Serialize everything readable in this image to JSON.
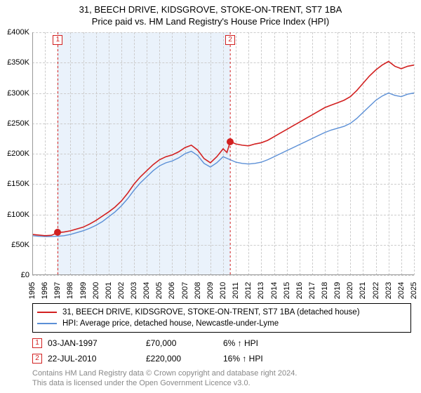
{
  "title": {
    "line1": "31, BEECH DRIVE, KIDSGROVE, STOKE-ON-TRENT, ST7 1BA",
    "line2": "Price paid vs. HM Land Registry's House Price Index (HPI)"
  },
  "chart": {
    "type": "line",
    "background_color": "#ffffff",
    "grid_color": "#cccccc",
    "shade_color": "#eaf2fb",
    "x": {
      "min": 1995,
      "max": 2025,
      "ticks": [
        1995,
        1996,
        1997,
        1998,
        1999,
        2000,
        2001,
        2002,
        2003,
        2004,
        2005,
        2006,
        2007,
        2008,
        2009,
        2010,
        2011,
        2012,
        2013,
        2014,
        2015,
        2016,
        2017,
        2018,
        2019,
        2020,
        2021,
        2022,
        2023,
        2024,
        2025
      ]
    },
    "y": {
      "min": 0,
      "max": 400000,
      "tick_step": 50000,
      "prefix": "£",
      "suffix": "K",
      "divisor": 1000
    },
    "shade": {
      "from_x": 1997.01,
      "to_x": 2010.56
    },
    "series": [
      {
        "name": "property",
        "label": "31, BEECH DRIVE, KIDSGROVE, STOKE-ON-TRENT, ST7 1BA (detached house)",
        "color": "#d22020",
        "width": 1.6,
        "data": [
          [
            1995,
            67000
          ],
          [
            1995.5,
            66000
          ],
          [
            1996,
            65000
          ],
          [
            1996.5,
            65500
          ],
          [
            1997,
            70000
          ],
          [
            1997.5,
            71000
          ],
          [
            1998,
            73000
          ],
          [
            1998.5,
            76000
          ],
          [
            1999,
            79000
          ],
          [
            1999.5,
            84000
          ],
          [
            2000,
            90000
          ],
          [
            2000.5,
            97000
          ],
          [
            2001,
            104000
          ],
          [
            2001.5,
            112000
          ],
          [
            2002,
            122000
          ],
          [
            2002.5,
            135000
          ],
          [
            2003,
            150000
          ],
          [
            2003.5,
            162000
          ],
          [
            2004,
            172000
          ],
          [
            2004.5,
            182000
          ],
          [
            2005,
            190000
          ],
          [
            2005.5,
            195000
          ],
          [
            2006,
            198000
          ],
          [
            2006.5,
            203000
          ],
          [
            2007,
            210000
          ],
          [
            2007.5,
            214000
          ],
          [
            2008,
            206000
          ],
          [
            2008.5,
            192000
          ],
          [
            2009,
            185000
          ],
          [
            2009.5,
            195000
          ],
          [
            2010,
            208000
          ],
          [
            2010.3,
            202000
          ],
          [
            2010.56,
            220000
          ],
          [
            2011,
            216000
          ],
          [
            2011.5,
            214000
          ],
          [
            2012,
            213000
          ],
          [
            2012.5,
            216000
          ],
          [
            2013,
            218000
          ],
          [
            2013.5,
            222000
          ],
          [
            2014,
            228000
          ],
          [
            2014.5,
            234000
          ],
          [
            2015,
            240000
          ],
          [
            2015.5,
            246000
          ],
          [
            2016,
            252000
          ],
          [
            2016.5,
            258000
          ],
          [
            2017,
            264000
          ],
          [
            2017.5,
            270000
          ],
          [
            2018,
            276000
          ],
          [
            2018.5,
            280000
          ],
          [
            2019,
            284000
          ],
          [
            2019.5,
            288000
          ],
          [
            2020,
            294000
          ],
          [
            2020.5,
            304000
          ],
          [
            2021,
            316000
          ],
          [
            2021.5,
            328000
          ],
          [
            2022,
            338000
          ],
          [
            2022.5,
            346000
          ],
          [
            2023,
            352000
          ],
          [
            2023.5,
            344000
          ],
          [
            2024,
            340000
          ],
          [
            2024.5,
            344000
          ],
          [
            2025,
            346000
          ]
        ]
      },
      {
        "name": "hpi",
        "label": "HPI: Average price, detached house, Newcastle-under-Lyme",
        "color": "#5b8fd6",
        "width": 1.4,
        "data": [
          [
            1995,
            65000
          ],
          [
            1995.5,
            64000
          ],
          [
            1996,
            63500
          ],
          [
            1996.5,
            63500
          ],
          [
            1997,
            64000
          ],
          [
            1997.5,
            65000
          ],
          [
            1998,
            67000
          ],
          [
            1998.5,
            70000
          ],
          [
            1999,
            73000
          ],
          [
            1999.5,
            77000
          ],
          [
            2000,
            82000
          ],
          [
            2000.5,
            88000
          ],
          [
            2001,
            96000
          ],
          [
            2001.5,
            104000
          ],
          [
            2002,
            114000
          ],
          [
            2002.5,
            126000
          ],
          [
            2003,
            140000
          ],
          [
            2003.5,
            152000
          ],
          [
            2004,
            162000
          ],
          [
            2004.5,
            172000
          ],
          [
            2005,
            180000
          ],
          [
            2005.5,
            185000
          ],
          [
            2006,
            188000
          ],
          [
            2006.5,
            193000
          ],
          [
            2007,
            200000
          ],
          [
            2007.5,
            204000
          ],
          [
            2008,
            197000
          ],
          [
            2008.5,
            184000
          ],
          [
            2009,
            178000
          ],
          [
            2009.5,
            185000
          ],
          [
            2010,
            195000
          ],
          [
            2010.56,
            190000
          ],
          [
            2011,
            186000
          ],
          [
            2011.5,
            184000
          ],
          [
            2012,
            183000
          ],
          [
            2012.5,
            184000
          ],
          [
            2013,
            186000
          ],
          [
            2013.5,
            190000
          ],
          [
            2014,
            195000
          ],
          [
            2014.5,
            200000
          ],
          [
            2015,
            205000
          ],
          [
            2015.5,
            210000
          ],
          [
            2016,
            215000
          ],
          [
            2016.5,
            220000
          ],
          [
            2017,
            225000
          ],
          [
            2017.5,
            230000
          ],
          [
            2018,
            235000
          ],
          [
            2018.5,
            239000
          ],
          [
            2019,
            242000
          ],
          [
            2019.5,
            245000
          ],
          [
            2020,
            250000
          ],
          [
            2020.5,
            258000
          ],
          [
            2021,
            268000
          ],
          [
            2021.5,
            278000
          ],
          [
            2022,
            288000
          ],
          [
            2022.5,
            295000
          ],
          [
            2023,
            300000
          ],
          [
            2023.5,
            296000
          ],
          [
            2024,
            294000
          ],
          [
            2024.5,
            298000
          ],
          [
            2025,
            300000
          ]
        ]
      }
    ],
    "event_line_color": "#d22020",
    "events": [
      {
        "label": "1",
        "x": 1997.01,
        "dot_y": 70000
      },
      {
        "label": "2",
        "x": 2010.56,
        "dot_y": 220000
      }
    ],
    "dot_color": "#d22020"
  },
  "legend": {
    "border_color": "#000000"
  },
  "sales": [
    {
      "marker": "1",
      "marker_color": "#d22020",
      "date": "03-JAN-1997",
      "price": "£70,000",
      "diff": "6% ↑ HPI"
    },
    {
      "marker": "2",
      "marker_color": "#d22020",
      "date": "22-JUL-2010",
      "price": "£220,000",
      "diff": "16% ↑ HPI"
    }
  ],
  "footnote": {
    "line1": "Contains HM Land Registry data © Crown copyright and database right 2024.",
    "line2": "This data is licensed under the Open Government Licence v3.0."
  }
}
